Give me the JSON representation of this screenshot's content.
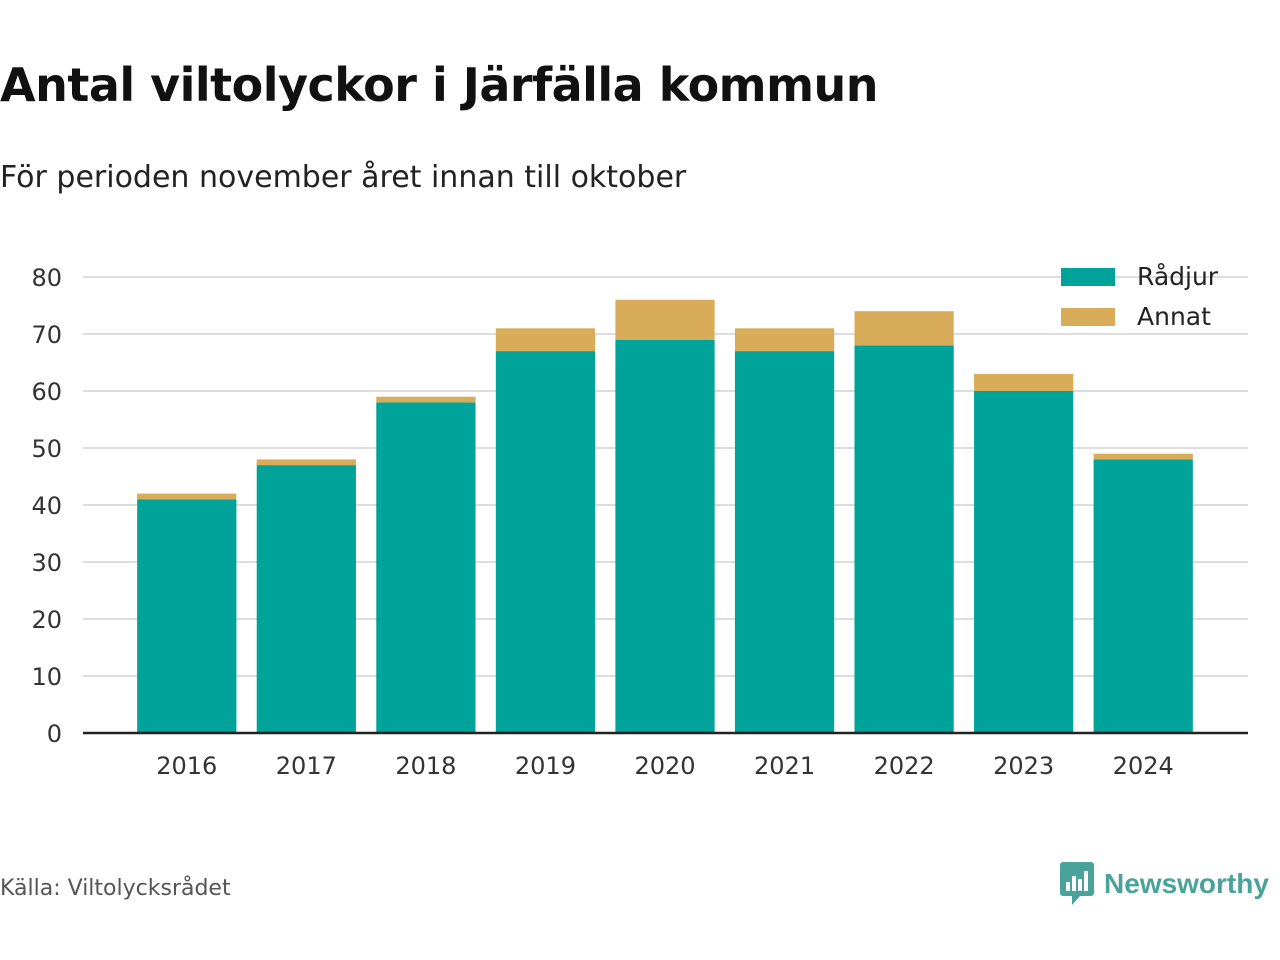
{
  "title": "Antal viltolyckor i Järfälla kommun",
  "subtitle": "För perioden november året innan till oktober",
  "source": "Källa: Viltolycksrådet",
  "brand": {
    "name": "Newsworthy",
    "icon": "bar-chart-speech-bubble-icon"
  },
  "colors": {
    "radjur": "#00a39a",
    "annat": "#d9ac59",
    "grid": "#dddddd",
    "axis": "#222222"
  },
  "chart_data": {
    "type": "bar",
    "stacked": true,
    "categories": [
      "2016",
      "2017",
      "2018",
      "2019",
      "2020",
      "2021",
      "2022",
      "2023",
      "2024"
    ],
    "series": [
      {
        "name": "Rådjur",
        "values": [
          41,
          47,
          58,
          67,
          69,
          67,
          68,
          60,
          48
        ]
      },
      {
        "name": "Annat",
        "values": [
          1,
          1,
          1,
          4,
          7,
          4,
          6,
          3,
          1
        ]
      }
    ],
    "ylim": [
      0,
      80
    ],
    "yticks": [
      0,
      10,
      20,
      30,
      40,
      50,
      60,
      70,
      80
    ],
    "grid": true,
    "legend": "top-right",
    "xlabel": "",
    "ylabel": ""
  }
}
